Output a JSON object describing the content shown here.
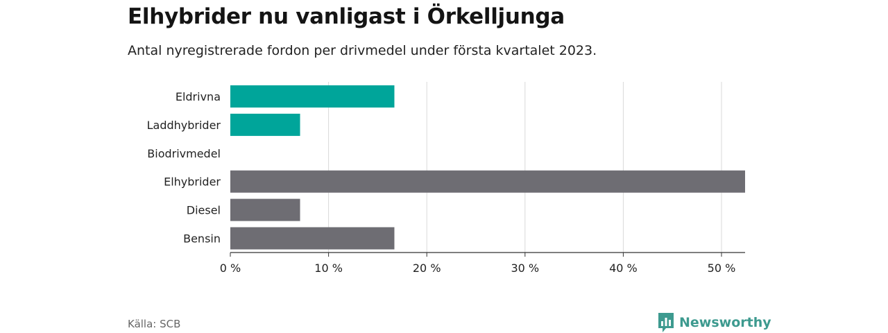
{
  "header": {
    "title": "Elhybrider nu vanligast i Örkelljunga",
    "subtitle": "Antal nyregistrerade fordon per drivmedel under första kvartalet 2023."
  },
  "footer": {
    "source": "Källa: SCB",
    "brand": "Newsworthy",
    "brand_icon": "newsworthy-logo-icon"
  },
  "colors": {
    "highlight": "#00a59a",
    "default": "#6e6d73",
    "grid": "#d9d9d9",
    "axis": "#333333",
    "brand": "#3d9a8f"
  },
  "chart_data": {
    "type": "bar",
    "orientation": "horizontal",
    "categories": [
      "Eldrivna",
      "Laddhybrider",
      "Biodrivmedel",
      "Elhybrider",
      "Diesel",
      "Bensin"
    ],
    "values": [
      16.7,
      7.1,
      0,
      52.4,
      7.1,
      16.7
    ],
    "highlighted": [
      true,
      true,
      true,
      false,
      false,
      false
    ],
    "unit": "%",
    "xlim": [
      0,
      52.4
    ],
    "xticks": [
      0,
      10,
      20,
      30,
      40,
      50
    ],
    "xtick_labels": [
      "0 %",
      "10 %",
      "20 %",
      "30 %",
      "40 %",
      "50 %"
    ],
    "grid": true,
    "legend": "none"
  }
}
